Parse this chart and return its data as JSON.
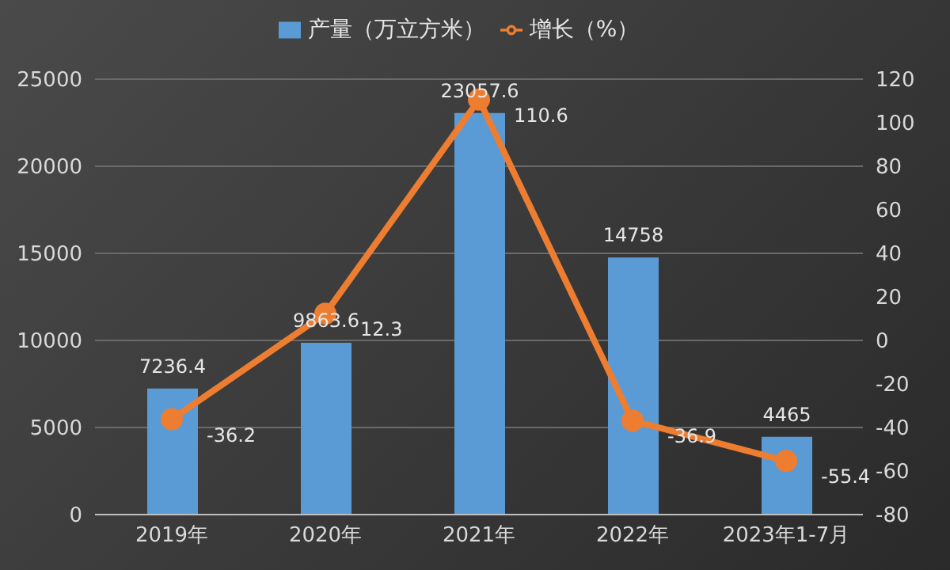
{
  "chart_data": {
    "type": "bar",
    "categories": [
      "2019年",
      "2020年",
      "2021年",
      "2022年",
      "2023年1-7月"
    ],
    "series": [
      {
        "name": "产量（万立方米）",
        "color": "#5b9bd5",
        "values": [
          7236.4,
          9863.6,
          23057.6,
          14758,
          4465
        ]
      },
      {
        "name": "增长（%）",
        "type": "line",
        "axis": "y2",
        "color": "#ed7d31",
        "values": [
          -36.2,
          12.3,
          110.6,
          -36.9,
          -55.4
        ]
      }
    ],
    "ylim": [
      0,
      25000
    ],
    "yticks": [
      0,
      5000,
      10000,
      15000,
      20000,
      25000
    ],
    "y2lim": [
      -80,
      120
    ],
    "y2ticks": [
      -80,
      -60,
      -40,
      -20,
      0,
      20,
      40,
      60,
      80,
      100,
      120
    ],
    "grid": "y",
    "legend": "top",
    "marker": "circle",
    "data_labels": true
  }
}
